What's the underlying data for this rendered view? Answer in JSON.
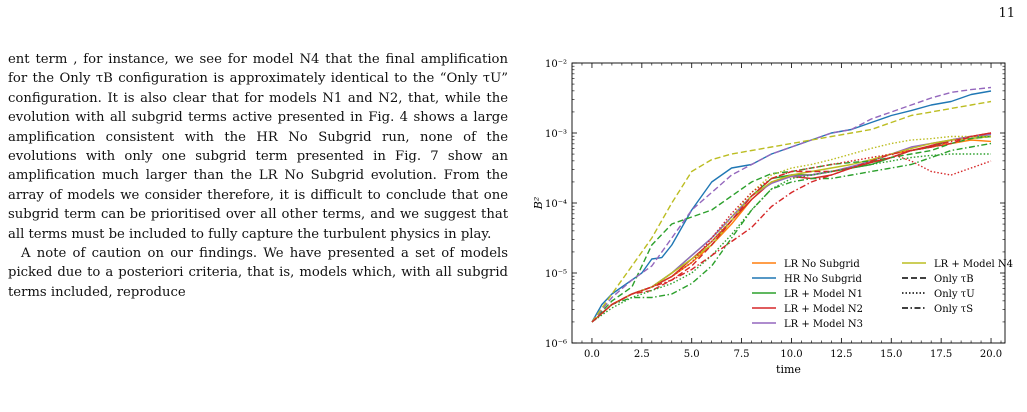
{
  "page": {
    "number": "11"
  },
  "text": {
    "paragraph1": "ent term , for instance, we see for model N4 that the final amplification for the Only τB configuration is approximately identical to the “Only τU” configuration. It is also clear that for models N1 and N2, that, while the evolution with all subgrid terms active presented in Fig. 4 shows a large amplification consistent with the HR No Subgrid run, none of the evolutions with only one subgrid term presented in Fig. 7 show an amplification much larger than the LR No Subgrid evolution. From the array of models we consider therefore, it is difficult to conclude that one subgrid term can be prioritised over all other terms, and we suggest that all terms must be included to fully capture the turbulent physics in play.",
    "paragraph2": "A note of caution on our findings. We have presented a set of models picked due to a posteriori criteria, that is, models which, with all subgrid terms included, reproduce"
  },
  "chart_data": {
    "type": "line",
    "xlabel": "time",
    "ylabel": "B²",
    "xlim": [
      -1,
      20.7
    ],
    "ylim_log10": [
      -6,
      -2
    ],
    "y_scale": "log",
    "x_ticks": [
      "0.0",
      "2.5",
      "5.0",
      "7.5",
      "10.0",
      "12.5",
      "15.0",
      "17.5",
      "20.0"
    ],
    "x_tick_values": [
      0,
      2.5,
      5,
      7.5,
      10,
      12.5,
      15,
      17.5,
      20
    ],
    "y_ticks": [
      "10⁻⁶",
      "10⁻⁵",
      "10⁻⁴",
      "10⁻³",
      "10⁻²"
    ],
    "y_tick_values": [
      -6,
      -5,
      -4,
      -3,
      -2
    ],
    "legend_position": "lower right",
    "legend": {
      "col1": [
        "LR No Subgrid",
        "HR No Subgrid",
        "LR + Model N1",
        "LR + Model N2",
        "LR + Model N3"
      ],
      "col2": [
        "LR + Model N4",
        "Only τB",
        "Only τU",
        "Only τS"
      ]
    },
    "colors": {
      "LR No Subgrid": "#ff7f0e",
      "HR No Subgrid": "#1f77b4",
      "LR + Model N1": "#2ca02c",
      "LR + Model N2": "#d62728",
      "LR + Model N3": "#9467bd",
      "LR + Model N4": "#bcbd22"
    },
    "series": [
      {
        "name": "LR No Subgrid",
        "color": "#ff7f0e",
        "style": "solid",
        "x": [
          0,
          1,
          2,
          3,
          4,
          5,
          6,
          7,
          8,
          9,
          10,
          11,
          12,
          13,
          14,
          15,
          16,
          17,
          18,
          19,
          20
        ],
        "log10_y": [
          -5.7,
          -5.45,
          -5.3,
          -5.2,
          -5.05,
          -4.85,
          -4.6,
          -4.3,
          -3.95,
          -3.7,
          -3.6,
          -3.6,
          -3.55,
          -3.5,
          -3.4,
          -3.3,
          -3.25,
          -3.2,
          -3.15,
          -3.1,
          -3.12
        ]
      },
      {
        "name": "HR No Subgrid",
        "color": "#1f77b4",
        "style": "solid",
        "x": [
          0,
          0.5,
          1,
          1.5,
          2,
          2.5,
          3,
          3.5,
          4,
          5,
          6,
          7,
          8,
          9,
          10,
          11,
          12,
          13,
          14,
          15,
          16,
          17,
          18,
          19,
          20
        ],
        "log10_y": [
          -5.7,
          -5.45,
          -5.3,
          -5.2,
          -5.1,
          -5.0,
          -4.8,
          -4.78,
          -4.6,
          -4.1,
          -3.7,
          -3.5,
          -3.45,
          -3.3,
          -3.2,
          -3.1,
          -3.0,
          -2.95,
          -2.85,
          -2.75,
          -2.68,
          -2.6,
          -2.55,
          -2.45,
          -2.4
        ]
      },
      {
        "name": "LR + Model N1",
        "color": "#2ca02c",
        "style": "solid",
        "x": [
          0,
          1,
          2,
          3,
          4,
          5,
          6,
          7,
          8,
          9,
          10,
          11,
          12,
          13,
          14,
          15,
          16,
          17,
          18,
          19,
          20
        ],
        "log10_y": [
          -5.7,
          -5.45,
          -5.3,
          -5.2,
          -5.0,
          -4.75,
          -4.5,
          -4.2,
          -3.9,
          -3.65,
          -3.6,
          -3.6,
          -3.55,
          -3.5,
          -3.45,
          -3.35,
          -3.25,
          -3.2,
          -3.1,
          -3.05,
          -3.05
        ]
      },
      {
        "name": "LR + Model N2",
        "color": "#d62728",
        "style": "solid",
        "x": [
          0,
          1,
          2,
          3,
          4,
          5,
          6,
          7,
          8,
          9,
          10,
          11,
          12,
          13,
          14,
          15,
          16,
          17,
          18,
          19,
          20
        ],
        "log10_y": [
          -5.7,
          -5.45,
          -5.3,
          -5.2,
          -5.05,
          -4.8,
          -4.55,
          -4.25,
          -3.95,
          -3.7,
          -3.62,
          -3.65,
          -3.6,
          -3.5,
          -3.42,
          -3.35,
          -3.25,
          -3.18,
          -3.1,
          -3.05,
          -3.0
        ]
      },
      {
        "name": "LR + Model N3",
        "color": "#9467bd",
        "style": "solid",
        "x": [
          0,
          1,
          2,
          3,
          4,
          5,
          6,
          7,
          8,
          9,
          10,
          11,
          12,
          13,
          14,
          15,
          16,
          17,
          18,
          19,
          20
        ],
        "log10_y": [
          -5.7,
          -5.45,
          -5.3,
          -5.2,
          -5.0,
          -4.75,
          -4.5,
          -4.2,
          -3.9,
          -3.72,
          -3.62,
          -3.6,
          -3.55,
          -3.48,
          -3.4,
          -3.3,
          -3.2,
          -3.15,
          -3.1,
          -3.05,
          -3.02
        ]
      },
      {
        "name": "LR + Model N4",
        "color": "#bcbd22",
        "style": "solid",
        "x": [
          0,
          1,
          2,
          3,
          4,
          5,
          6,
          7,
          8,
          9,
          10,
          11,
          12,
          13,
          14,
          15,
          16,
          17,
          18,
          19,
          20
        ],
        "log10_y": [
          -5.7,
          -5.45,
          -5.3,
          -5.2,
          -5.0,
          -4.8,
          -4.6,
          -4.25,
          -3.9,
          -3.7,
          -3.6,
          -3.55,
          -3.5,
          -3.45,
          -3.38,
          -3.3,
          -3.22,
          -3.15,
          -3.1,
          -3.08,
          -3.05
        ]
      },
      {
        "name": "N1 Only τB",
        "color": "#2ca02c",
        "style": "dashed",
        "x": [
          0,
          1,
          2,
          3,
          4,
          5,
          6,
          7,
          8,
          9,
          10,
          11,
          12,
          13,
          14,
          15,
          16,
          17,
          18,
          19,
          20
        ],
        "log10_y": [
          -5.7,
          -5.4,
          -5.2,
          -4.6,
          -4.3,
          -4.2,
          -4.1,
          -3.9,
          -3.7,
          -3.58,
          -3.55,
          -3.5,
          -3.45,
          -3.42,
          -3.4,
          -3.35,
          -3.3,
          -3.25,
          -3.15,
          -3.08,
          -3.05
        ]
      },
      {
        "name": "N2 Only τB",
        "color": "#d62728",
        "style": "dashed",
        "x": [
          0,
          1,
          2,
          3,
          4,
          5,
          6,
          7,
          8,
          9,
          10,
          11,
          12,
          13,
          14,
          15,
          16,
          17,
          18,
          19,
          20
        ],
        "log10_y": [
          -5.7,
          -5.45,
          -5.3,
          -5.25,
          -5.1,
          -4.9,
          -4.6,
          -4.25,
          -3.9,
          -3.65,
          -3.55,
          -3.55,
          -3.55,
          -3.5,
          -3.42,
          -3.35,
          -3.25,
          -3.2,
          -3.15,
          -3.05,
          -3.0
        ]
      },
      {
        "name": "N3 Only τB",
        "color": "#9467bd",
        "style": "dashed",
        "x": [
          0,
          1,
          2,
          3,
          4,
          5,
          6,
          7,
          8,
          9,
          10,
          11,
          12,
          13,
          14,
          15,
          16,
          17,
          18,
          19,
          20
        ],
        "log10_y": [
          -5.7,
          -5.35,
          -5.1,
          -4.9,
          -4.5,
          -4.1,
          -3.85,
          -3.6,
          -3.45,
          -3.3,
          -3.2,
          -3.1,
          -3.0,
          -2.95,
          -2.8,
          -2.7,
          -2.6,
          -2.5,
          -2.42,
          -2.38,
          -2.35
        ]
      },
      {
        "name": "N4 Only τB",
        "color": "#bcbd22",
        "style": "dashed",
        "x": [
          0,
          1,
          2,
          3,
          4,
          5,
          6,
          7,
          8,
          9,
          10,
          11,
          12,
          13,
          14,
          15,
          16,
          17,
          18,
          19,
          20
        ],
        "log10_y": [
          -5.7,
          -5.3,
          -4.9,
          -4.5,
          -4.0,
          -3.55,
          -3.38,
          -3.3,
          -3.25,
          -3.2,
          -3.15,
          -3.1,
          -3.05,
          -3.0,
          -2.95,
          -2.85,
          -2.75,
          -2.7,
          -2.65,
          -2.6,
          -2.55
        ]
      },
      {
        "name": "N1 Only τU",
        "color": "#2ca02c",
        "style": "dotted",
        "x": [
          0,
          1,
          2,
          3,
          4,
          5,
          6,
          7,
          8,
          9,
          10,
          11,
          12,
          13,
          14,
          15,
          16,
          17,
          18,
          19,
          20
        ],
        "log10_y": [
          -5.7,
          -5.5,
          -5.35,
          -5.25,
          -5.15,
          -5.0,
          -4.75,
          -4.45,
          -4.1,
          -3.8,
          -3.65,
          -3.6,
          -3.55,
          -3.5,
          -3.45,
          -3.4,
          -3.35,
          -3.32,
          -3.3,
          -3.3,
          -3.3
        ]
      },
      {
        "name": "N4 Only τU",
        "color": "#bcbd22",
        "style": "dotted",
        "x": [
          0,
          1,
          2,
          3,
          4,
          5,
          6,
          7,
          8,
          9,
          10,
          11,
          12,
          13,
          14,
          15,
          16,
          17,
          18,
          19,
          20
        ],
        "log10_y": [
          -5.7,
          -5.45,
          -5.3,
          -5.2,
          -5.05,
          -4.85,
          -4.55,
          -4.2,
          -3.85,
          -3.6,
          -3.5,
          -3.45,
          -3.38,
          -3.3,
          -3.22,
          -3.15,
          -3.1,
          -3.08,
          -3.05,
          -3.05,
          -3.05
        ]
      },
      {
        "name": "N2 Only τU",
        "color": "#d62728",
        "style": "dotted",
        "x": [
          0,
          1,
          2,
          3,
          4,
          5,
          6,
          7,
          8,
          9,
          10,
          11,
          12,
          13,
          14,
          15,
          16,
          17,
          18,
          19,
          20
        ],
        "log10_y": [
          -5.7,
          -5.45,
          -5.3,
          -5.2,
          -5.05,
          -4.85,
          -4.5,
          -4.15,
          -3.85,
          -3.65,
          -3.55,
          -3.5,
          -3.45,
          -3.4,
          -3.35,
          -3.3,
          -3.4,
          -3.55,
          -3.6,
          -3.5,
          -3.4
        ]
      },
      {
        "name": "N1 Only τS",
        "color": "#2ca02c",
        "style": "dashdot",
        "x": [
          0,
          1,
          2,
          3,
          4,
          5,
          6,
          7,
          8,
          9,
          10,
          11,
          12,
          13,
          14,
          15,
          16,
          17,
          18,
          19,
          20
        ],
        "log10_y": [
          -5.7,
          -5.45,
          -5.35,
          -5.35,
          -5.3,
          -5.15,
          -4.9,
          -4.5,
          -4.1,
          -3.8,
          -3.7,
          -3.65,
          -3.65,
          -3.6,
          -3.55,
          -3.5,
          -3.45,
          -3.35,
          -3.25,
          -3.2,
          -3.15
        ]
      },
      {
        "name": "N2 Only τS",
        "color": "#d62728",
        "style": "dashdot",
        "x": [
          0,
          1,
          2,
          3,
          4,
          5,
          6,
          7,
          8,
          9,
          10,
          11,
          12,
          13,
          14,
          15,
          16,
          17,
          18,
          19,
          20
        ],
        "log10_y": [
          -5.7,
          -5.45,
          -5.3,
          -5.2,
          -5.1,
          -4.95,
          -4.75,
          -4.55,
          -4.35,
          -4.05,
          -3.85,
          -3.7,
          -3.6,
          -3.5,
          -3.4,
          -3.3,
          -3.25,
          -3.2,
          -3.12,
          -3.05,
          -3.0
        ]
      }
    ]
  }
}
